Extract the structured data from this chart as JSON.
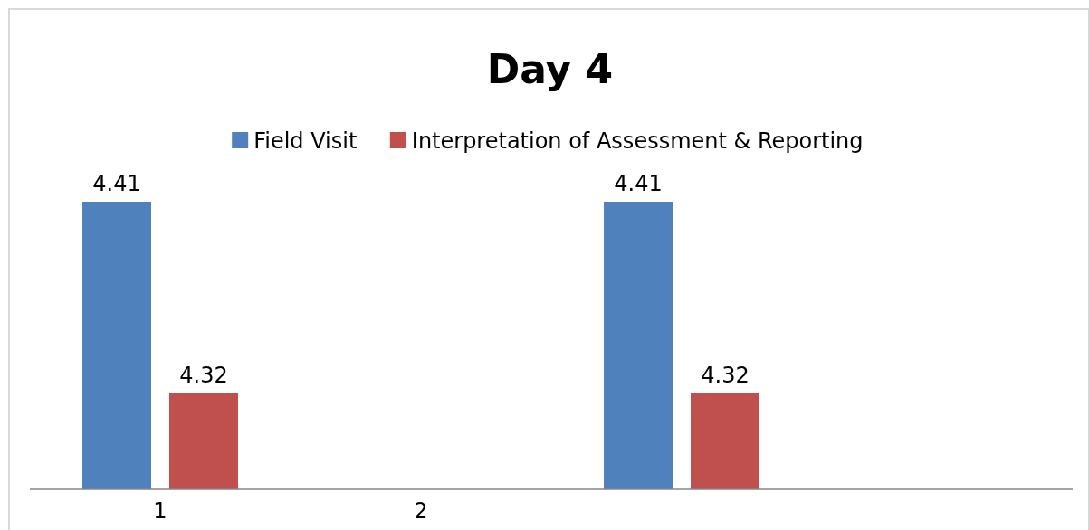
{
  "chart_data": {
    "type": "bar",
    "title": "Day 4",
    "categories": [
      "1",
      "2",
      null,
      null
    ],
    "series": [
      {
        "name": "Field Visit",
        "color": "#4f81bd",
        "values": [
          4.41,
          null,
          4.41,
          null
        ]
      },
      {
        "name": "Interpretation of Assessment & Reporting",
        "color": "#c0504d",
        "values": [
          4.32,
          null,
          4.32,
          null
        ]
      }
    ],
    "ylim": [
      4.275,
      4.41
    ],
    "tick_labels": "x",
    "data_labels": true,
    "legend": "top",
    "grid": false
  }
}
